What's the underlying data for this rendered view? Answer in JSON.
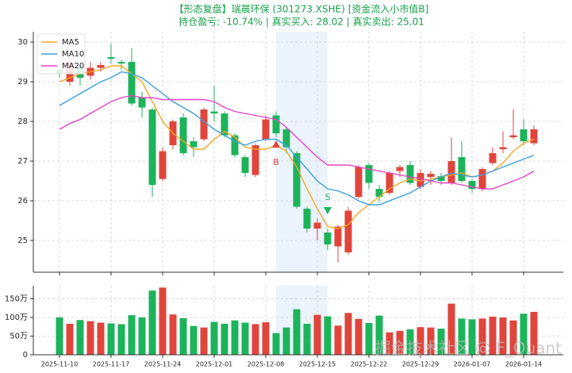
{
  "chart_data": {
    "type": "candlestick",
    "title": "【形态复盘】瑞晨环保 (301273.XSHE) [资金流入小市值B]",
    "subtitle": "持仓盈亏: -10.74% | 真实买入: 28.02 | 真实卖出: 25.01",
    "title_color": "#17a34a",
    "categories": [
      "2025-11-10",
      null,
      null,
      null,
      null,
      "2025-11-17",
      null,
      null,
      null,
      null,
      "2025-11-24",
      null,
      null,
      null,
      null,
      "2025-12-01",
      null,
      null,
      null,
      null,
      "2025-12-08",
      null,
      null,
      null,
      null,
      "2025-12-15",
      null,
      null,
      null,
      null,
      "2025-12-22",
      null,
      null,
      null,
      null,
      "2025-12-29",
      null,
      null,
      null,
      null,
      "2026-01-07",
      null,
      null,
      null,
      null,
      "2026-01-14",
      null
    ],
    "open": [
      29.3,
      29.0,
      29.4,
      29.15,
      29.35,
      29.62,
      29.5,
      29.5,
      28.6,
      28.3,
      26.55,
      27.4,
      28.1,
      27.5,
      27.55,
      28.25,
      28.2,
      27.65,
      27.1,
      26.65,
      27.55,
      28.15,
      27.8,
      27.2,
      25.8,
      25.3,
      25.2,
      24.85,
      24.7,
      26.1,
      26.9,
      26.3,
      26.2,
      26.75,
      26.9,
      26.35,
      26.6,
      26.62,
      26.45,
      27.1,
      26.5,
      26.3,
      26.95,
      27.3,
      27.6,
      27.8,
      27.45
    ],
    "high": [
      29.35,
      29.6,
      29.5,
      29.5,
      29.5,
      29.95,
      29.55,
      29.85,
      28.75,
      28.35,
      27.35,
      28.05,
      28.2,
      27.6,
      28.35,
      28.9,
      28.25,
      27.7,
      27.15,
      27.45,
      28.15,
      28.25,
      27.85,
      27.25,
      25.85,
      25.55,
      25.3,
      25.4,
      25.85,
      26.9,
      26.95,
      26.4,
      26.75,
      26.9,
      27.0,
      26.8,
      26.75,
      26.7,
      27.6,
      27.5,
      26.55,
      26.85,
      27.35,
      27.75,
      28.3,
      28.05,
      27.9
    ],
    "low": [
      29.1,
      28.9,
      28.9,
      29.05,
      29.25,
      29.45,
      29.3,
      28.4,
      28.1,
      26.1,
      26.5,
      27.3,
      27.15,
      27.1,
      27.5,
      28.0,
      27.6,
      27.1,
      26.6,
      26.6,
      27.5,
      27.6,
      27.2,
      25.8,
      25.2,
      25.0,
      24.75,
      24.45,
      24.65,
      26.05,
      26.3,
      25.95,
      26.15,
      26.6,
      26.4,
      26.3,
      26.4,
      26.4,
      26.4,
      26.45,
      26.2,
      26.25,
      26.9,
      27.2,
      27.55,
      27.4,
      27.4
    ],
    "close": [
      29.2,
      29.5,
      29.1,
      29.35,
      29.42,
      29.58,
      29.46,
      28.45,
      28.35,
      26.4,
      27.25,
      28.0,
      27.2,
      27.35,
      28.3,
      28.2,
      27.65,
      27.15,
      26.7,
      27.4,
      28.05,
      27.7,
      27.35,
      25.85,
      25.3,
      25.45,
      24.9,
      25.35,
      25.75,
      26.85,
      26.45,
      26.1,
      26.7,
      26.85,
      26.45,
      26.7,
      26.68,
      26.5,
      27.0,
      26.5,
      26.3,
      26.8,
      27.2,
      27.35,
      27.65,
      27.5,
      27.8
    ],
    "up_color": "#e0453c",
    "down_color": "#1db35b",
    "series": [
      {
        "name": "MA5",
        "color": "#f5a623",
        "values": [
          29.0,
          29.1,
          29.2,
          29.25,
          29.3,
          29.4,
          29.4,
          29.2,
          29.0,
          28.5,
          28.0,
          27.7,
          27.5,
          27.3,
          27.3,
          27.55,
          27.75,
          27.6,
          27.35,
          27.3,
          27.3,
          27.4,
          27.25,
          26.85,
          26.3,
          25.8,
          25.35,
          25.3,
          25.4,
          25.7,
          25.9,
          26.1,
          26.3,
          26.45,
          26.55,
          26.5,
          26.55,
          26.6,
          26.65,
          26.7,
          26.6,
          26.65,
          26.75,
          26.95,
          27.25,
          27.45,
          27.55
        ]
      },
      {
        "name": "MA10",
        "color": "#3a9ee0",
        "values": [
          28.4,
          28.55,
          28.7,
          28.85,
          29.0,
          29.1,
          29.25,
          29.2,
          29.1,
          28.9,
          28.7,
          28.5,
          28.35,
          28.2,
          28.0,
          27.8,
          27.65,
          27.5,
          27.4,
          27.5,
          27.55,
          27.55,
          27.4,
          27.1,
          26.8,
          26.5,
          26.3,
          26.25,
          26.15,
          26.0,
          25.9,
          25.9,
          26.0,
          26.1,
          26.2,
          26.35,
          26.5,
          26.6,
          26.7,
          26.65,
          26.6,
          26.65,
          26.75,
          26.85,
          26.95,
          27.05,
          27.15
        ]
      },
      {
        "name": "MA20",
        "color": "#e841c8",
        "values": [
          27.8,
          27.95,
          28.05,
          28.2,
          28.35,
          28.5,
          28.6,
          28.65,
          28.6,
          28.6,
          28.55,
          28.55,
          28.55,
          28.55,
          28.55,
          28.5,
          28.35,
          28.25,
          28.2,
          28.15,
          28.1,
          28.05,
          27.85,
          27.6,
          27.35,
          27.1,
          26.9,
          26.9,
          26.9,
          26.85,
          26.8,
          26.75,
          26.7,
          26.65,
          26.6,
          26.55,
          26.5,
          26.45,
          26.45,
          26.4,
          26.35,
          26.3,
          26.3,
          26.4,
          26.5,
          26.6,
          26.75
        ]
      }
    ],
    "signals": [
      {
        "label": "B",
        "index": 21,
        "value": 27.42,
        "color": "#e0453c",
        "direction": "up"
      },
      {
        "label": "S",
        "index": 26,
        "value": 25.76,
        "color": "#1db35b",
        "direction": "down"
      }
    ],
    "highlight": [
      21,
      26
    ],
    "ylim": [
      24.2,
      30.26
    ],
    "yticks": [
      25,
      26,
      27,
      28,
      29,
      30
    ],
    "grid": true,
    "legend": "upper-left",
    "volume": {
      "values": [
        100,
        83,
        93,
        90,
        86,
        84,
        82,
        106,
        100,
        172,
        180,
        108,
        98,
        77,
        73,
        88,
        83,
        92,
        86,
        82,
        87,
        58,
        73,
        122,
        83,
        107,
        103,
        78,
        112,
        96,
        85,
        105,
        60,
        64,
        68,
        74,
        73,
        70,
        137,
        97,
        95,
        97,
        102,
        100,
        92,
        110,
        115
      ],
      "ylim": [
        0,
        185
      ],
      "yticks": [
        0,
        {
          "value": 50,
          "label": "50万"
        },
        {
          "value": 100,
          "label": "100万"
        },
        {
          "value": 150,
          "label": "150万"
        }
      ]
    },
    "watermark": "掘金技术社区 @ F_Quant"
  }
}
